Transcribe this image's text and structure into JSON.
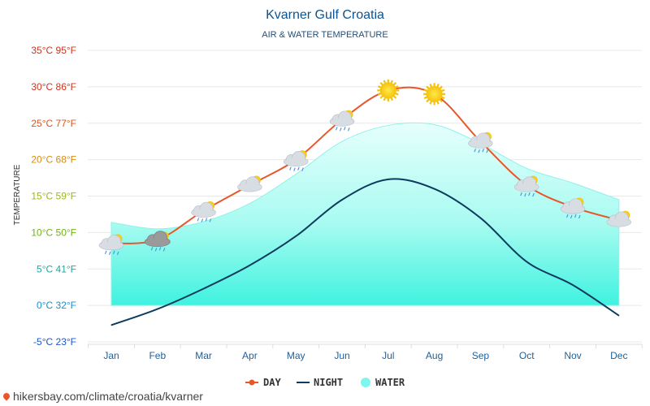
{
  "chart_data": {
    "type": "line",
    "title": "Kvarner Gulf Croatia",
    "subtitle": "AIR & WATER TEMPERATURE",
    "ylabel": "TEMPERATURE",
    "ylim": [
      -5,
      35
    ],
    "yticks": [
      {
        "value": 35,
        "label": "35°C 95°F",
        "color": "#d0341a"
      },
      {
        "value": 30,
        "label": "30°C 86°F",
        "color": "#d0341a"
      },
      {
        "value": 25,
        "label": "25°C 77°F",
        "color": "#d9541c"
      },
      {
        "value": 20,
        "label": "20°C 68°F",
        "color": "#d88b12"
      },
      {
        "value": 15,
        "label": "15°C 59°F",
        "color": "#9cb81a"
      },
      {
        "value": 10,
        "label": "10°C 50°F",
        "color": "#6fb21a"
      },
      {
        "value": 5,
        "label": "5°C 41°F",
        "color": "#20a7a0"
      },
      {
        "value": 0,
        "label": "0°C 32°F",
        "color": "#1a8fc9"
      },
      {
        "value": -5,
        "label": "-5°C 23°F",
        "color": "#1a56c9"
      }
    ],
    "categories": [
      "Jan",
      "Feb",
      "Mar",
      "Apr",
      "May",
      "Jun",
      "Jul",
      "Aug",
      "Sep",
      "Oct",
      "Nov",
      "Dec"
    ],
    "series": [
      {
        "name": "DAY",
        "color": "#e8562a",
        "values": [
          8.5,
          9,
          13,
          16.5,
          20,
          25.5,
          29.5,
          29,
          22.5,
          16.5,
          13.5,
          11.7
        ],
        "icons": [
          "partly-cloudy-rain-icon",
          "rain-cloud-icon",
          "partly-cloudy-rain-icon",
          "partly-cloudy-icon",
          "partly-cloudy-rain-icon",
          "partly-cloudy-rain-icon",
          "sun-icon",
          "sun-icon",
          "partly-cloudy-rain-icon",
          "partly-cloudy-rain-icon",
          "partly-cloudy-rain-icon",
          "partly-cloudy-icon"
        ]
      },
      {
        "name": "NIGHT",
        "color": "#0d3b5e",
        "values": [
          -2.7,
          -0.5,
          2.3,
          5.5,
          9.5,
          14.5,
          17.3,
          16,
          12,
          6,
          2.8,
          -1.4
        ]
      },
      {
        "name": "WATER",
        "color": "#7ff5ef",
        "values": [
          11.4,
          10.5,
          11.5,
          14,
          18,
          22.5,
          24.7,
          24.8,
          22.2,
          18.8,
          16.8,
          14.5
        ]
      }
    ]
  },
  "footer": {
    "url": "hikersbay.com/climate/croatia/kvarner"
  }
}
